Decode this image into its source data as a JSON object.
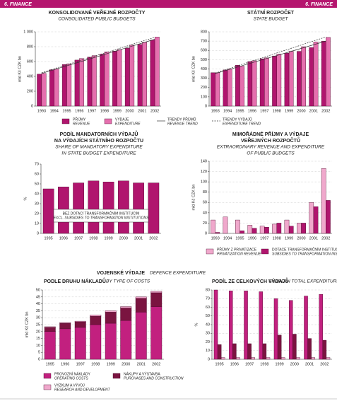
{
  "header": {
    "left": "6. FINANCE",
    "right": "6. FINANCE"
  },
  "section_title": "VOJENSKÉ VÝDAJE",
  "section_subtitle": "DEFENCE EXPENDITURE",
  "chart_data": [
    {
      "type": "bar",
      "title": [
        "KONSOLIDOVANÉ VEŘEJNÉ ROZPOČTY"
      ],
      "subtitle": [
        "CONSOLIDATED PUBLIC BUDGETS"
      ],
      "ylabel": "mld Kč   CZK bn",
      "categories": [
        "1993",
        "1994",
        "1995",
        "1996",
        "1997",
        "1998",
        "1999",
        "2000",
        "2001",
        "2002"
      ],
      "ylim": [
        0,
        1000
      ],
      "yticks": [
        0,
        200,
        400,
        600,
        800,
        {
          "value": 1000,
          "label": "1 000"
        }
      ],
      "grid": true,
      "series": [
        {
          "name": "PŘÍJMY",
          "name_en": "REVENUE",
          "color": "#b0156e",
          "values": [
            430,
            490,
            560,
            620,
            660,
            700,
            740,
            780,
            830,
            890
          ]
        },
        {
          "name": "VÝDAJE",
          "name_en": "EXPENDITURE",
          "color": "#e56fae",
          "values": [
            440,
            500,
            570,
            640,
            680,
            730,
            760,
            820,
            860,
            930
          ]
        },
        {
          "type": "line",
          "dash": false,
          "name": "TRENDY PŘÍJMŮ",
          "name_en": "REVENUE TREND",
          "color": "#333333",
          "values": [
            440,
            491,
            542,
            593,
            644,
            696,
            747,
            798,
            849,
            900
          ]
        },
        {
          "type": "line",
          "dash": true,
          "name": "TRENDY VÝDAJŮ",
          "name_en": "EXPENDITURE TREND",
          "color": "#333333",
          "values": [
            450,
            503,
            556,
            609,
            662,
            714,
            767,
            820,
            873,
            926
          ]
        }
      ]
    },
    {
      "type": "bar",
      "title": [
        "STÁTNÍ ROZPOČET"
      ],
      "subtitle": [
        "STATE BUDGET"
      ],
      "ylabel": "mld Kč   CZK bn",
      "categories": [
        "1993",
        "1994",
        "1995",
        "1996",
        "1997",
        "1998",
        "1999",
        "2000",
        "2001",
        "2002"
      ],
      "ylim": [
        0,
        800
      ],
      "yticks": [
        0,
        100,
        200,
        300,
        400,
        500,
        600,
        700,
        800
      ],
      "grid": true,
      "series": [
        {
          "color": "#b0156e",
          "values": [
            360,
            390,
            440,
            480,
            510,
            540,
            570,
            590,
            630,
            700
          ]
        },
        {
          "color": "#e56fae",
          "values": [
            360,
            400,
            430,
            490,
            520,
            560,
            590,
            640,
            690,
            740
          ]
        },
        {
          "type": "line",
          "dash": false,
          "color": "#333333",
          "values": [
            350,
            389,
            428,
            467,
            506,
            544,
            583,
            622,
            661,
            700
          ]
        },
        {
          "type": "line",
          "dash": true,
          "color": "#333333",
          "values": [
            355,
            398,
            442,
            485,
            528,
            572,
            615,
            658,
            702,
            745
          ]
        }
      ]
    },
    {
      "type": "bar",
      "title": [
        "PODÍL MANDATORNÍCH VÝDAJŮ",
        "NA VÝDAJÍCH STÁTNÍHO ROZPOČTU"
      ],
      "subtitle": [
        "SHARE OF MANDATORY EXPENDITURE",
        "IN STATE BUDGET EXPENDITURE"
      ],
      "ylabel": "%",
      "categories": [
        "1995",
        "1996",
        "1997",
        "1998",
        "1999",
        "2000",
        "2001",
        "2002"
      ],
      "ylim": [
        0,
        70
      ],
      "yticks": [
        0,
        10,
        20,
        30,
        40,
        50,
        60,
        70
      ],
      "grid": false,
      "note": [
        "BEZ DOTACÍ TRANSFORMAČNÍM INSTITUCÍM",
        "EXCL. SUBSIDIES TO TRANSFORMATION INSTITUTIONS"
      ],
      "series": [
        {
          "color": "#b0156e",
          "values": [
            45,
            47,
            51,
            53,
            52,
            53,
            51,
            51
          ]
        }
      ]
    },
    {
      "type": "bar",
      "title": [
        "MIMOŘÁDNÉ PŘÍJMY A VÝDAJE",
        "VEŘEJNÝCH ROZPOČTŮ"
      ],
      "subtitle": [
        "EXTRAORDINARY REVENUE AND EXPENDITURE",
        "OF PUBLIC BUDGETS"
      ],
      "ylabel": "mld Kč   CZK bn",
      "categories": [
        "1993",
        "1994",
        "1995",
        "1996",
        "1997",
        "1998",
        "1999",
        "2000",
        "2001",
        "2002"
      ],
      "ylim": [
        0,
        140
      ],
      "yticks": [
        0,
        20,
        40,
        60,
        80,
        100,
        120,
        140
      ],
      "grid": true,
      "series": [
        {
          "name": "PŘÍJMY Z PRIVATIZACE",
          "name_en": "PRIVATIZATION REVENUE",
          "color": "#f0a8cc",
          "values": [
            26,
            32,
            26,
            16,
            14,
            18,
            26,
            20,
            60,
            126
          ]
        },
        {
          "name": "DOTACE TRANSFORMAČNÍM INSTITUCÍM",
          "name_en": "SUBSIDIES TO TRANSFORMATION INSTITUTIONS",
          "color": "#b0156e",
          "values": [
            2,
            0,
            5,
            10,
            12,
            20,
            14,
            20,
            52,
            64
          ]
        }
      ]
    },
    {
      "type": "bar",
      "stacked": true,
      "title": [
        "PODLE DRUHU NÁKLADŮ"
      ],
      "subtitle": [
        "BY TYPE OF COSTS"
      ],
      "ylabel": "mld Kč   CZK bn",
      "categories": [
        "1995",
        "1996",
        "1997",
        "1998",
        "1999",
        "2000",
        "2001",
        "2002"
      ],
      "ylim": [
        0,
        50
      ],
      "yticks": [
        0,
        5,
        10,
        15,
        20,
        25,
        30,
        35,
        40,
        45,
        50
      ],
      "grid": true,
      "series": [
        {
          "name": "PROVOZNÍ NÁKLADY",
          "name_en": "OPERATING COSTS",
          "color": "#c2207f",
          "values": [
            20,
            22,
            23,
            25,
            26,
            28,
            34,
            38
          ]
        },
        {
          "name": "NÁKUPY A VÝSTAVBA",
          "name_en": "PURCHASES AND CONSTRUCTION",
          "color": "#7a1440",
          "values": [
            3,
            4,
            4,
            6,
            8,
            9,
            10,
            10
          ]
        },
        {
          "name": "VÝZKUM A VÝVOJ",
          "name_en": "RESEARCH AND DEVELOPMENT",
          "color": "#f0a8cc",
          "values": [
            0.5,
            0.5,
            0.5,
            1,
            1,
            1,
            1,
            1
          ]
        }
      ]
    },
    {
      "type": "bar",
      "title": [
        "PODÍL ZE CELKOVÝCH VÝDAJŮ"
      ],
      "subtitle": [
        "SHARE IN TOTAL EXPENDITURE"
      ],
      "ylabel": "%",
      "categories": [
        "1995",
        "1996",
        "1997",
        "1998",
        "1999",
        "2000",
        "2001",
        "2002"
      ],
      "ylim": [
        0,
        80
      ],
      "yticks": [
        0,
        10,
        20,
        30,
        40,
        50,
        60,
        70,
        80
      ],
      "grid": true,
      "series": [
        {
          "color": "#c2207f",
          "values": [
            80,
            79,
            79,
            78,
            70,
            68,
            73,
            75
          ]
        },
        {
          "color": "#7a1440",
          "values": [
            17,
            18,
            18,
            18,
            28,
            29,
            24,
            22
          ]
        },
        {
          "color": "#f0a8cc",
          "values": [
            2,
            2,
            2,
            2,
            2,
            2,
            2,
            2
          ]
        }
      ]
    }
  ]
}
